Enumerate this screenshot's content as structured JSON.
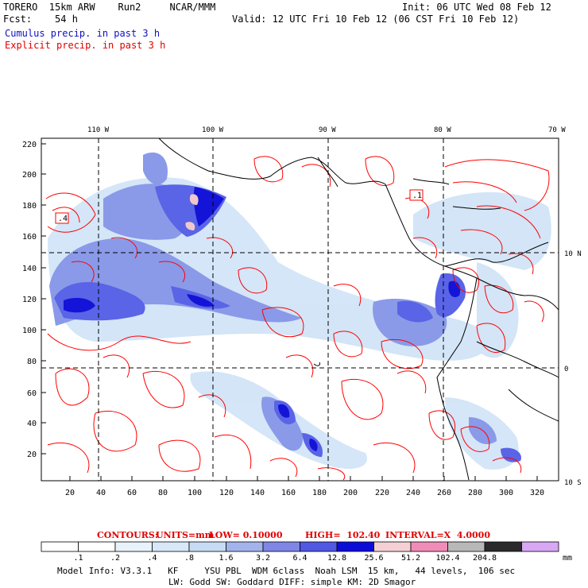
{
  "header": {
    "model": "TORERO  15km ARW    Run2     NCAR/MMM",
    "forecast": "Fcst:    54 h",
    "init": "Init: 06 UTC Wed 08 Feb 12",
    "valid": "Valid: 12 UTC Fri 10 Feb 12 (06 CST Fri 10 Feb 12)",
    "legend_cumulus": "Cumulus precip. in past 3 h",
    "legend_explicit": "Explicit precip. in past 3 h"
  },
  "map": {
    "lon_labels": [
      "110 W",
      "100 W",
      "90 W",
      "80 W",
      "70 W"
    ],
    "lat_labels": [
      "10 N",
      "0",
      "10 S"
    ],
    "y_ticks": [
      "220",
      "200",
      "180",
      "160",
      "140",
      "120",
      "100",
      "80",
      "60",
      "40",
      "20"
    ],
    "x_ticks": [
      "20",
      "40",
      "60",
      "80",
      "100",
      "120",
      "140",
      "160",
      "180",
      "200",
      "220",
      "240",
      "260",
      "280",
      "300",
      "320"
    ],
    "contour_labels": [
      ".4",
      ".1"
    ],
    "colors": {
      "light_blue": "#cfe3f7",
      "mid_blue": "#8a9ae8",
      "blue": "#5a64e6",
      "dark_blue": "#1414d8",
      "pink": "#f0c8cc",
      "contour_red": "#ff0000"
    }
  },
  "contours_info": {
    "title": "CONTOURS:",
    "units": "UNITS=mm",
    "low": "LOW= 0.10000",
    "high": "HIGH=  102.40",
    "interval": "INTERVAL=X  4.0000"
  },
  "colorbar": {
    "unit": "mm",
    "labels": [
      ".1",
      ".2",
      ".4",
      ".8",
      "1.6",
      "3.2",
      "6.4",
      "12.8",
      "25.6",
      "51.2",
      "102.4",
      "204.8"
    ],
    "colors": [
      "#ffffff",
      "#ffffff",
      "#e8f2fb",
      "#d8e8f8",
      "#c6dcf4",
      "#a3b4ec",
      "#7f86e6",
      "#5058e4",
      "#0c0cd8",
      "#f4d0d4",
      "#f08cb8",
      "#b8b8b8",
      "#2a2a2a",
      "#d8a8f4"
    ]
  },
  "footer": {
    "line1": "Model Info: V3.3.1   KF     YSU PBL  WDM 6class  Noah LSM  15 km,   44 levels,  106 sec",
    "line2": "LW: Godd SW: Goddard DIFF: simple KM: 2D Smagor"
  }
}
